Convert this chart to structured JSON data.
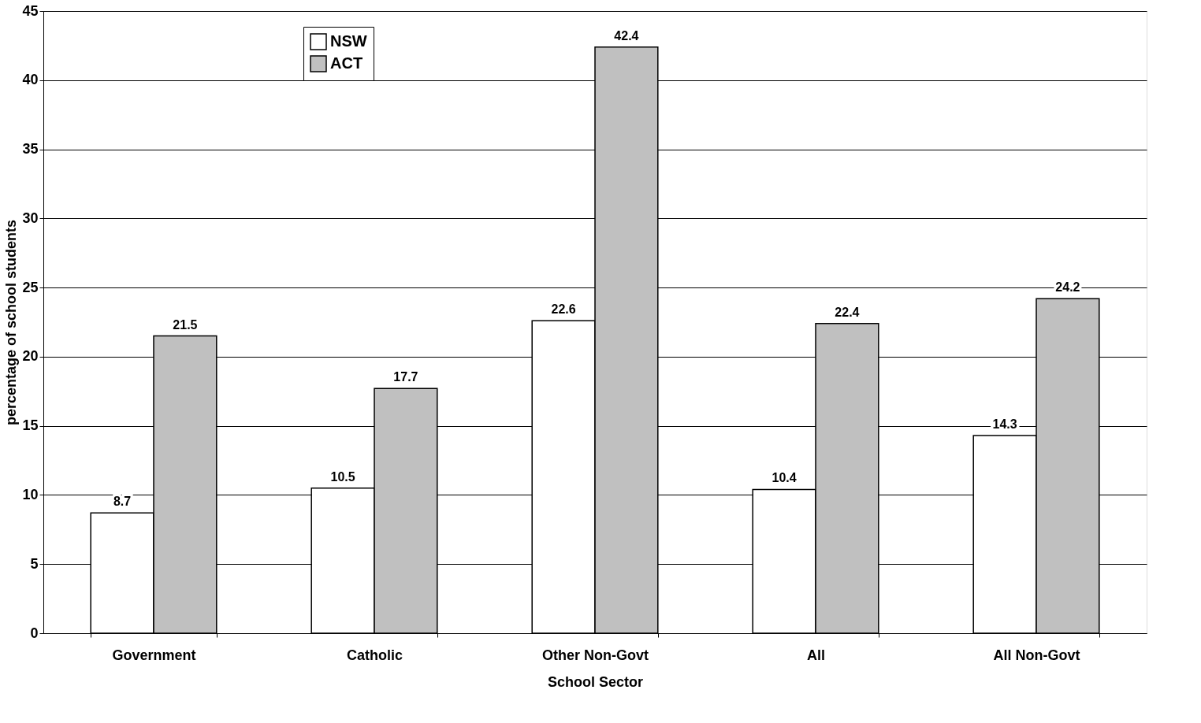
{
  "chart_data": {
    "type": "bar",
    "xlabel": "School Sector",
    "ylabel": "percentage of school students",
    "categories": [
      "Government",
      "Catholic",
      "Other Non-Govt",
      "All",
      "All Non-Govt"
    ],
    "series": [
      {
        "name": "NSW",
        "color": "#ffffff",
        "values": [
          8.7,
          10.5,
          22.6,
          10.4,
          14.3
        ]
      },
      {
        "name": "ACT",
        "color": "#c0c0c0",
        "values": [
          21.5,
          17.7,
          42.4,
          22.4,
          24.2
        ]
      }
    ],
    "ylim": [
      0,
      45
    ],
    "yticks": [
      0,
      5,
      10,
      15,
      20,
      25,
      30,
      35,
      40,
      45
    ],
    "grid": "y",
    "legend": "top left",
    "data_labels": true
  }
}
